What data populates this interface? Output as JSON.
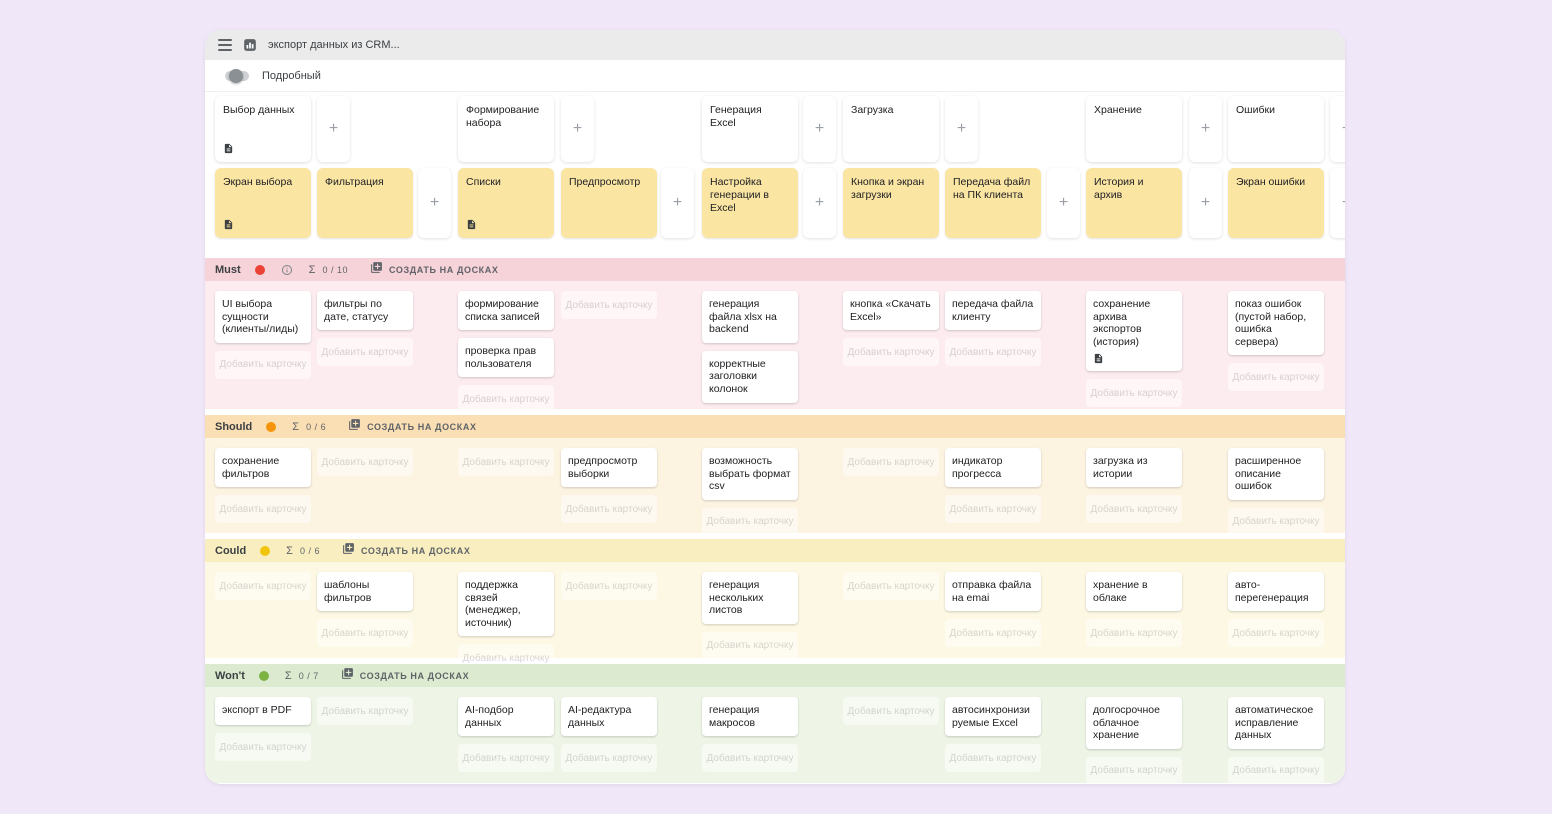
{
  "window": {
    "title": "экспорт данных из CRM...",
    "toggle_label": "Подробный",
    "toggle_on": false
  },
  "labels": {
    "add_card": "Добавить карточку",
    "plus": "+"
  },
  "epics": [
    {
      "title": "Выбор данных",
      "doc_icon": true,
      "steps": [
        {
          "title": "Экран выбора",
          "doc_icon": true
        },
        {
          "title": "Фильтрация"
        }
      ]
    },
    {
      "title": "Формирование набора",
      "steps": [
        {
          "title": "Списки",
          "doc_icon": true
        },
        {
          "title": "Предпросмотр"
        }
      ]
    },
    {
      "title": "Генерация Excel",
      "steps": [
        {
          "title": "Настройка генерации в Excel"
        }
      ]
    },
    {
      "title": "Загрузка",
      "steps": [
        {
          "title": "Кнопка и экран загрузки"
        },
        {
          "title": "Передача файл на ПК клиента"
        }
      ]
    },
    {
      "title": "Хранение",
      "steps": [
        {
          "title": "История и архив"
        }
      ]
    },
    {
      "title": "Ошибки",
      "steps": [
        {
          "title": "Экран ошибки"
        }
      ]
    }
  ],
  "lanes": [
    {
      "name": "Must",
      "dot_color": "#ea4335",
      "info_icon": true,
      "count": "0 / 10",
      "create_label": "СОЗДАТЬ НА ДОСКАХ",
      "header_bg": "#f6d3d9",
      "body_bg": "#fcecef",
      "columns": [
        [
          {
            "text": "UI выбора сущности (клиенты/лиды)"
          }
        ],
        [
          {
            "text": "фильтры по дате, статусу"
          }
        ],
        [
          {
            "text": "формирование списка записей"
          },
          {
            "text": "проверка прав пользователя"
          }
        ],
        [],
        [
          {
            "text": "генерация файла xlsx на backend"
          },
          {
            "text": "корректные заголовки колонок"
          }
        ],
        [
          {
            "text": "кнопка «Скачать Excel»"
          }
        ],
        [
          {
            "text": "передача файла клиенту"
          }
        ],
        [
          {
            "text": "сохранение архива экспортов (история)",
            "doc_icon": true
          }
        ],
        [
          {
            "text": "показ ошибок (пустой набор, ошибка сервера)"
          }
        ]
      ]
    },
    {
      "name": "Should",
      "dot_color": "#f5930b",
      "info_icon": false,
      "count": "0 / 6",
      "create_label": "СОЗДАТЬ НА ДОСКАХ",
      "header_bg": "#fbdfb4",
      "body_bg": "#fdf3e1",
      "columns": [
        [
          {
            "text": "сохранение фильтров"
          }
        ],
        [],
        [],
        [
          {
            "text": "предпросмотр выборки"
          }
        ],
        [
          {
            "text": "возможность выбрать формат csv"
          }
        ],
        [],
        [
          {
            "text": "индикатор прогресса"
          }
        ],
        [
          {
            "text": "загрузка из истории"
          }
        ],
        [
          {
            "text": "расширенное описание ошибок"
          }
        ]
      ]
    },
    {
      "name": "Could",
      "dot_color": "#f2c50d",
      "info_icon": false,
      "count": "0 / 6",
      "create_label": "СОЗДАТЬ НА ДОСКАХ",
      "header_bg": "#f8eec0",
      "body_bg": "#fcf8e3",
      "columns": [
        [],
        [
          {
            "text": "шаблоны фильтров"
          }
        ],
        [
          {
            "text": "поддержка связей (менеджер, источник)"
          }
        ],
        [],
        [
          {
            "text": "генерация нескольких листов"
          }
        ],
        [],
        [
          {
            "text": "отправка файла на emai"
          }
        ],
        [
          {
            "text": "хранение в облаке"
          }
        ],
        [
          {
            "text": "авто-перегенерация"
          }
        ]
      ]
    },
    {
      "name": "Won't",
      "dot_color": "#7cb342",
      "info_icon": false,
      "count": "0 / 7",
      "create_label": "СОЗДАТЬ НА ДОСКАХ",
      "header_bg": "#dcebd0",
      "body_bg": "#eef5e6",
      "columns": [
        [
          {
            "text": "экспорт в PDF"
          }
        ],
        [],
        [
          {
            "text": "AI-подбор данных"
          }
        ],
        [
          {
            "text": "AI-редактура данных"
          }
        ],
        [
          {
            "text": "генерация макросов"
          }
        ],
        [],
        [
          {
            "text": "автосинхронизируемые Excel"
          }
        ],
        [
          {
            "text": "долгосрочное облачное хранение"
          }
        ],
        [
          {
            "text": "автоматическое исправление данных"
          }
        ]
      ]
    }
  ]
}
